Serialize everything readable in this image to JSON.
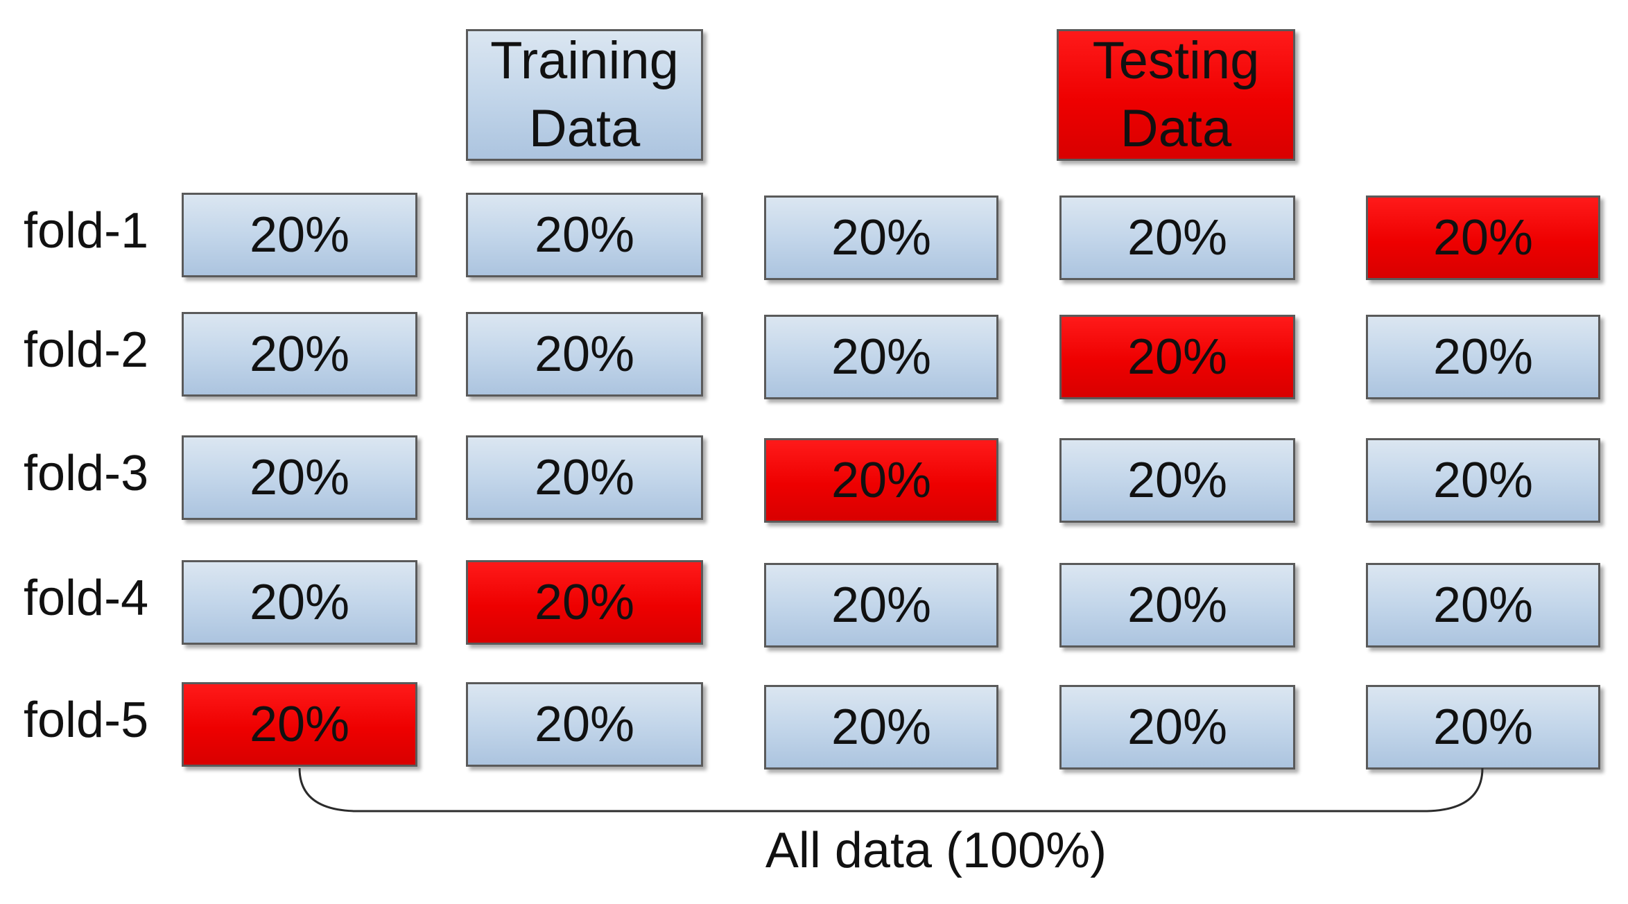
{
  "legend": {
    "training": {
      "line1": "Training",
      "line2": "Data"
    },
    "testing": {
      "line1": "Testing",
      "line2": "Data"
    }
  },
  "colors": {
    "training": "#c3d6ea",
    "testing": "#ee0000",
    "border": "#5a5a5a"
  },
  "folds": [
    {
      "label": "fold-1",
      "cells": [
        "20%",
        "20%",
        "20%",
        "20%",
        "20%"
      ],
      "test_index": 4
    },
    {
      "label": "fold-2",
      "cells": [
        "20%",
        "20%",
        "20%",
        "20%",
        "20%"
      ],
      "test_index": 3
    },
    {
      "label": "fold-3",
      "cells": [
        "20%",
        "20%",
        "20%",
        "20%",
        "20%"
      ],
      "test_index": 2
    },
    {
      "label": "fold-4",
      "cells": [
        "20%",
        "20%",
        "20%",
        "20%",
        "20%"
      ],
      "test_index": 1
    },
    {
      "label": "fold-5",
      "cells": [
        "20%",
        "20%",
        "20%",
        "20%",
        "20%"
      ],
      "test_index": 0
    }
  ],
  "caption": "All data (100%)"
}
